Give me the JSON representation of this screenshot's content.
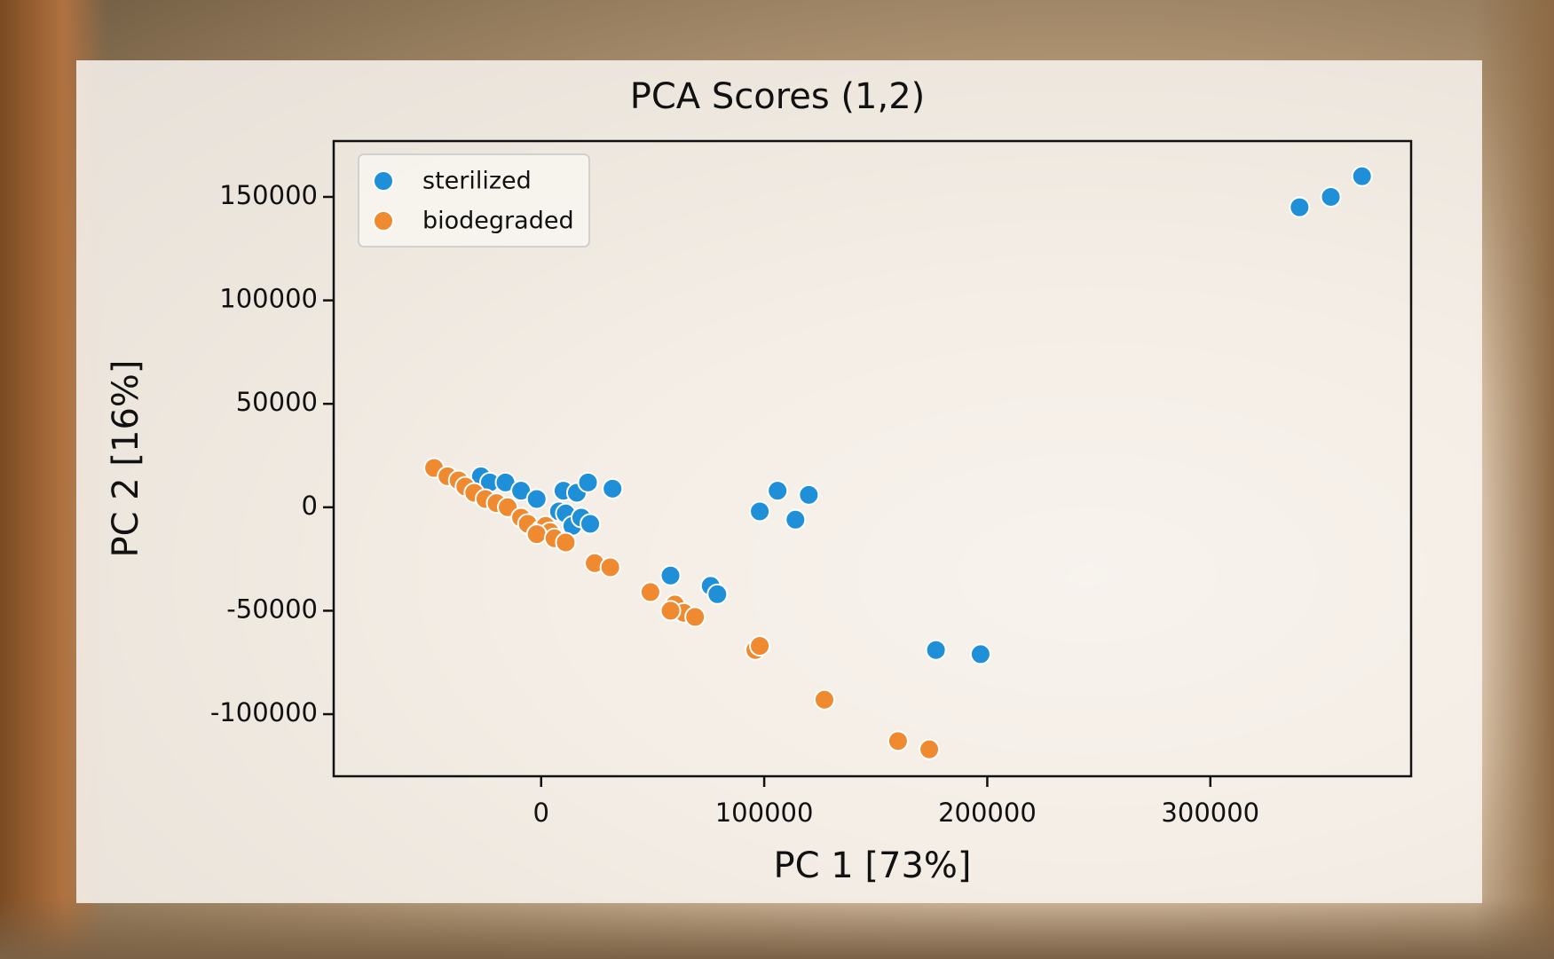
{
  "chart_data": {
    "type": "scatter",
    "title": "PCA Scores (1,2)",
    "xlabel": "PC 1 [73%]",
    "ylabel": "PC 2 [16%]",
    "xlim": [
      -93000,
      390000
    ],
    "ylim": [
      -130000,
      177000
    ],
    "xticks": [
      0,
      100000,
      200000,
      300000
    ],
    "yticks": [
      150000,
      100000,
      50000,
      0,
      -50000,
      -100000
    ],
    "xtick_labels": [
      "0",
      "100000",
      "200000",
      "300000"
    ],
    "ytick_labels": [
      "150000",
      "100000",
      "50000",
      "0",
      "-50000",
      "-100000"
    ],
    "legend_position": "top-left",
    "grid": false,
    "series": [
      {
        "name": "sterilized",
        "color": "#1f8fd8",
        "points": [
          [
            340000,
            145000
          ],
          [
            354000,
            150000
          ],
          [
            368000,
            160000
          ],
          [
            -27000,
            15000
          ],
          [
            -23000,
            12000
          ],
          [
            -16000,
            12000
          ],
          [
            -9000,
            8000
          ],
          [
            -2000,
            4000
          ],
          [
            10000,
            8000
          ],
          [
            16000,
            7000
          ],
          [
            21000,
            12000
          ],
          [
            32000,
            9000
          ],
          [
            8000,
            -2000
          ],
          [
            11000,
            -3000
          ],
          [
            14000,
            -9000
          ],
          [
            18000,
            -5000
          ],
          [
            22000,
            -8000
          ],
          [
            98000,
            -2000
          ],
          [
            106000,
            8000
          ],
          [
            114000,
            -6000
          ],
          [
            120000,
            6000
          ],
          [
            58000,
            -33000
          ],
          [
            76000,
            -38000
          ],
          [
            79000,
            -42000
          ],
          [
            177000,
            -69000
          ],
          [
            197000,
            -71000
          ]
        ]
      },
      {
        "name": "biodegraded",
        "color": "#f08a30",
        "points": [
          [
            -48000,
            19000
          ],
          [
            -42000,
            15000
          ],
          [
            -37000,
            13000
          ],
          [
            -34000,
            10000
          ],
          [
            -30000,
            7000
          ],
          [
            -25000,
            4000
          ],
          [
            -20000,
            2000
          ],
          [
            -15000,
            0
          ],
          [
            -9000,
            -5000
          ],
          [
            -6000,
            -8000
          ],
          [
            0,
            -11000
          ],
          [
            2000,
            -9000
          ],
          [
            4000,
            -12000
          ],
          [
            -2000,
            -13000
          ],
          [
            6000,
            -15000
          ],
          [
            11000,
            -17000
          ],
          [
            24000,
            -27000
          ],
          [
            31000,
            -29000
          ],
          [
            49000,
            -41000
          ],
          [
            60000,
            -47000
          ],
          [
            64000,
            -51000
          ],
          [
            69000,
            -53000
          ],
          [
            58000,
            -50000
          ],
          [
            96000,
            -69000
          ],
          [
            98000,
            -67000
          ],
          [
            127000,
            -93000
          ],
          [
            160000,
            -113000
          ],
          [
            174000,
            -117000
          ]
        ]
      }
    ]
  }
}
